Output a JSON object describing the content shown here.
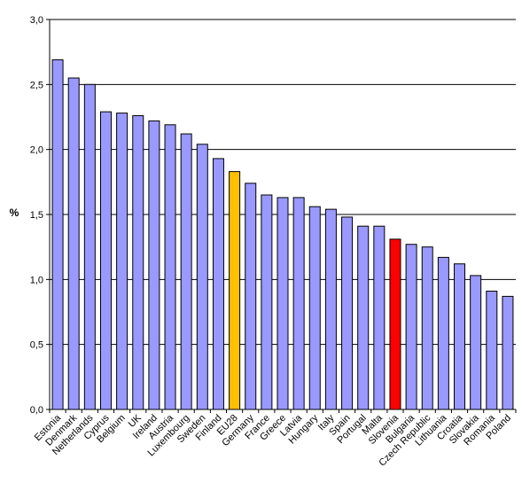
{
  "chart_data": {
    "type": "bar",
    "title": "",
    "xlabel": "",
    "ylabel": "%",
    "ylim": [
      0,
      3.0
    ],
    "yticks": [
      "0,0",
      "0,5",
      "1,0",
      "1,5",
      "2,0",
      "2,5",
      "3,0"
    ],
    "grid": "horizontal",
    "categories": [
      "Estonia",
      "Denmark",
      "Netherlands",
      "Cyprus",
      "Belgium",
      "UK",
      "Ireland",
      "Austria",
      "Luxembourg",
      "Sweden",
      "Finland",
      "EU28",
      "Germany",
      "France",
      "Greece",
      "Latvia",
      "Hungary",
      "Italy",
      "Spain",
      "Portugal",
      "Malta",
      "Slovenia",
      "Bulgaria",
      "Czech Republic",
      "Lithuania",
      "Croatia",
      "Slovakia",
      "Romania",
      "Poland"
    ],
    "values": [
      2.69,
      2.55,
      2.5,
      2.29,
      2.28,
      2.26,
      2.22,
      2.19,
      2.12,
      2.04,
      1.93,
      1.83,
      1.74,
      1.65,
      1.63,
      1.63,
      1.56,
      1.54,
      1.48,
      1.41,
      1.41,
      1.31,
      1.27,
      1.25,
      1.17,
      1.12,
      1.03,
      0.91,
      0.87
    ],
    "colors": {
      "default": "#9999ff",
      "highlight": {
        "EU28": "#ffc000",
        "Slovenia": "#ff0000"
      },
      "outline": "#000000",
      "gridline": "#000000"
    }
  }
}
